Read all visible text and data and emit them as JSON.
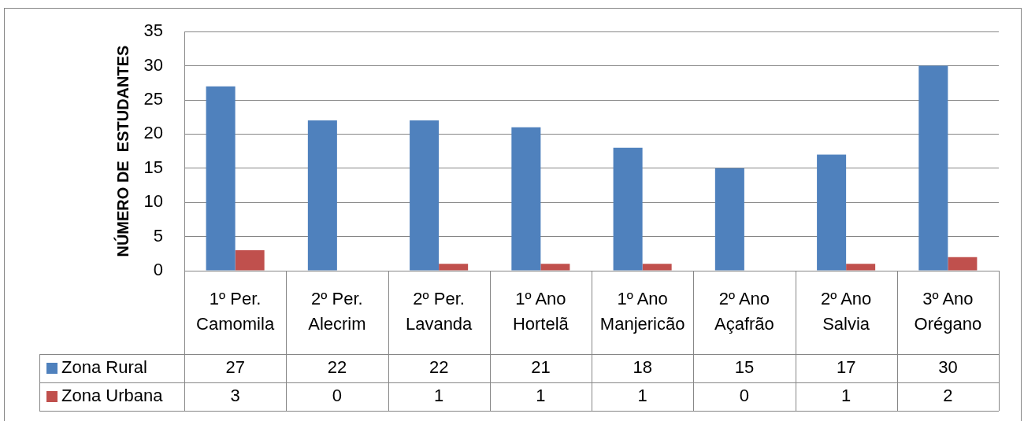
{
  "chart_data": {
    "type": "bar",
    "categories": [
      "1º Per. Camomila",
      "2º Per. Alecrim",
      "2º Per. Lavanda",
      "1º Ano Hortelã",
      "1º Ano Manjericão",
      "2º Ano Açafrão",
      "2º Ano Salvia",
      "3º Ano Orégano"
    ],
    "series": [
      {
        "name": "Zona Rural",
        "color": "#4f81bd",
        "values": [
          27,
          22,
          22,
          21,
          18,
          15,
          17,
          30
        ]
      },
      {
        "name": "Zona Urbana",
        "color": "#c0504d",
        "values": [
          3,
          0,
          1,
          1,
          1,
          0,
          1,
          2
        ]
      }
    ],
    "ylabel": "NÚMERO DE  ESTUDANTES",
    "ylim": [
      0,
      35
    ],
    "yticks": [
      0,
      5,
      10,
      15,
      20,
      25,
      30,
      35
    ],
    "grid": "y",
    "legend": "bottom",
    "data_labels": true
  }
}
